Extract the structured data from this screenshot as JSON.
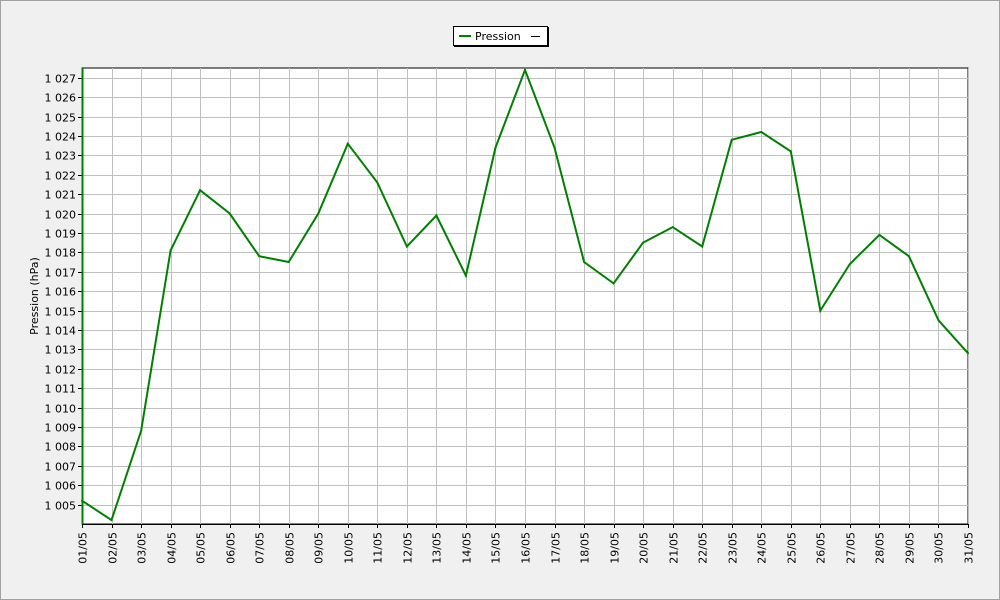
{
  "chart_data": {
    "type": "line",
    "title": "",
    "xlabel": "",
    "ylabel": "Pression (hPa)",
    "ylim": [
      1004,
      1027.5
    ],
    "grid": true,
    "legend_position": "top-center",
    "categories": [
      "01/05",
      "02/05",
      "03/05",
      "04/05",
      "05/05",
      "06/05",
      "07/05",
      "08/05",
      "09/05",
      "10/05",
      "11/05",
      "12/05",
      "13/05",
      "14/05",
      "15/05",
      "16/05",
      "17/05",
      "18/05",
      "19/05",
      "20/05",
      "21/05",
      "22/05",
      "23/05",
      "24/05",
      "25/05",
      "26/05",
      "27/05",
      "28/05",
      "29/05",
      "30/05",
      "31/05"
    ],
    "y_ticks": [
      "1 005",
      "1 006",
      "1 007",
      "1 008",
      "1 009",
      "1 010",
      "1 011",
      "1 012",
      "1 013",
      "1 014",
      "1 015",
      "1 016",
      "1 017",
      "1 018",
      "1 019",
      "1 020",
      "1 021",
      "1 022",
      "1 023",
      "1 024",
      "1 025",
      "1 026",
      "1 027"
    ],
    "y_tick_values": [
      1005,
      1006,
      1007,
      1008,
      1009,
      1010,
      1011,
      1012,
      1013,
      1014,
      1015,
      1016,
      1017,
      1018,
      1019,
      1020,
      1021,
      1022,
      1023,
      1024,
      1025,
      1026,
      1027
    ],
    "series": [
      {
        "name": "Pression",
        "color": "#008000",
        "values": [
          1005.2,
          1004.2,
          1008.8,
          1018.1,
          1021.2,
          1020.0,
          1017.8,
          1017.5,
          1020.0,
          1023.6,
          1021.6,
          1018.3,
          1019.9,
          1016.8,
          1023.4,
          1027.4,
          1023.4,
          1017.5,
          1016.4,
          1018.5,
          1019.3,
          1018.3,
          1023.8,
          1024.2,
          1023.2,
          1015.0,
          1017.4,
          1018.9,
          1017.8,
          1014.5,
          1012.8
        ]
      }
    ]
  },
  "legend": {
    "label": "Pression"
  }
}
